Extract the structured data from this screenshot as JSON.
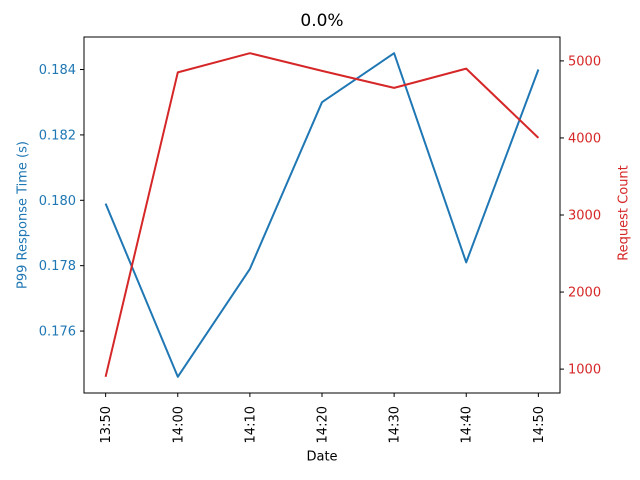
{
  "chart_data": {
    "type": "line",
    "title": "0.0%",
    "xlabel": "Date",
    "categories": [
      "13:50",
      "14:00",
      "14:10",
      "14:20",
      "14:30",
      "14:40",
      "14:50"
    ],
    "series": [
      {
        "name": "P99 Response Time (s)",
        "axis": "left",
        "color": "#1f77b4",
        "values": [
          0.1799,
          0.1746,
          0.1779,
          0.183,
          0.1845,
          0.1781,
          0.184
        ]
      },
      {
        "name": "Request Count",
        "axis": "right",
        "color": "#d62728",
        "values": [
          900,
          4850,
          5100,
          4870,
          4650,
          4900,
          4000
        ]
      }
    ],
    "left_axis": {
      "label": "P99 Response Time (s)",
      "ticks": [
        0.176,
        0.178,
        0.18,
        0.182,
        0.184
      ],
      "range": [
        0.1741,
        0.185
      ],
      "color": "#1f77b4"
    },
    "right_axis": {
      "label": "Request Count",
      "ticks": [
        1000,
        2000,
        3000,
        4000,
        5000
      ],
      "range": [
        690,
        5310
      ],
      "color": "#d62728"
    },
    "grid": false,
    "legend": "none"
  }
}
